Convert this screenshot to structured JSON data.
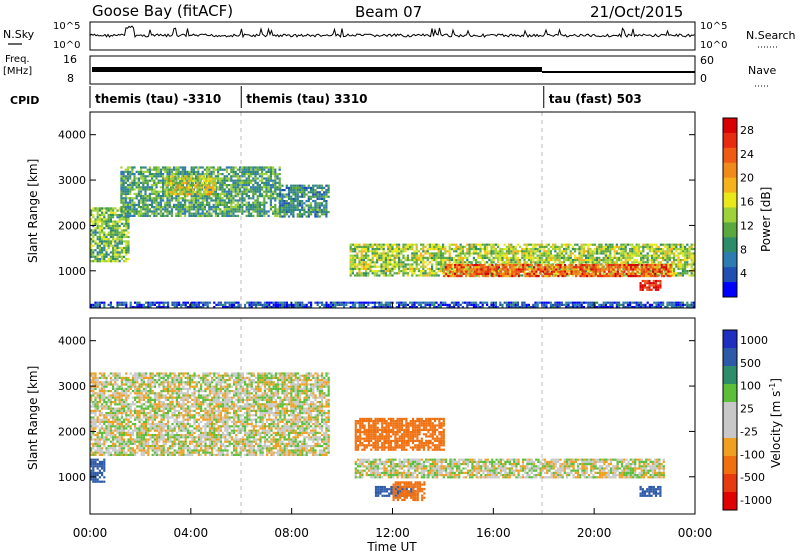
{
  "header": {
    "station": "Goose Bay (fitACF)",
    "beam": "Beam 07",
    "date": "21/Oct/2015"
  },
  "left_labels": {
    "nsky": "N.Sky",
    "nsky_hi": "10^5",
    "nsky_lo": "10^0",
    "freq_line1": "Freq.",
    "freq_line2": "[MHz]",
    "freq_hi": "16",
    "freq_lo": "8",
    "cpid": "CPID"
  },
  "right_labels": {
    "nsearch": "N.Search",
    "nsearch_hi": "10^5",
    "nsearch_lo": "10^0",
    "nave": "Nave",
    "nave_hi": "60",
    "nave_lo": "0"
  },
  "cpid_segments": [
    {
      "label": "themis (tau) -3310",
      "start_h": 0
    },
    {
      "label": "themis (tau) 3310",
      "start_h": 6
    },
    {
      "label": "tau (fast) 503",
      "start_h": 18
    }
  ],
  "x_axis": {
    "title": "Time UT",
    "ticks": [
      "00:00",
      "04:00",
      "08:00",
      "12:00",
      "16:00",
      "20:00",
      "00:00"
    ],
    "range_hours": [
      0,
      24
    ]
  },
  "power_panel": {
    "ylabel": "Slant Range [km]",
    "yticks": [
      "1000",
      "2000",
      "3000",
      "4000"
    ],
    "colorbar_label": "Power [dB]",
    "colorbar_ticks": [
      "4",
      "8",
      "12",
      "16",
      "20",
      "24",
      "28"
    ],
    "colorbar_colors": [
      "#0000ff",
      "#1f4fb0",
      "#2e7ab2",
      "#2f8c6a",
      "#5aa83e",
      "#9fd23a",
      "#e8e81a",
      "#f5b21a",
      "#f08a1a",
      "#ef5a14",
      "#e82a10",
      "#d80000"
    ]
  },
  "velocity_panel": {
    "ylabel": "Slant Range [km]",
    "yticks": [
      "1000",
      "2000",
      "3000",
      "4000"
    ],
    "colorbar_label": "Velocity [m s^-1]",
    "colorbar_ticks": [
      "1000",
      "500",
      "100",
      "25",
      "-25",
      "-100",
      "-500",
      "-1000"
    ],
    "colorbar_colors": [
      "#1f2fbf",
      "#2d5aa8",
      "#2f8c6a",
      "#5bbf3a",
      "#c8c8c8",
      "#c8c8c8",
      "#f0a020",
      "#f07010",
      "#e83a10",
      "#e00000"
    ]
  },
  "chart_data": {
    "type": "heatmap",
    "x": {
      "label": "Time UT",
      "range_hours": [
        0,
        24
      ]
    },
    "y": {
      "label": "Slant Range [km]",
      "range_km": [
        180,
        4500
      ]
    },
    "panels": [
      {
        "name": "Power [dB]",
        "colorbar_range": [
          0,
          30
        ],
        "regions": [
          {
            "t": [
              0.0,
              1.5
            ],
            "r": [
              1200,
              2400
            ],
            "value": 12
          },
          {
            "t": [
              1.2,
              7.5
            ],
            "r": [
              2200,
              3300
            ],
            "value": 10
          },
          {
            "t": [
              3.0,
              5.0
            ],
            "r": [
              2700,
              3100
            ],
            "value": 16
          },
          {
            "t": [
              7.5,
              9.5
            ],
            "r": [
              2200,
              2900
            ],
            "value": 8
          },
          {
            "t": [
              10.3,
              24.0
            ],
            "r": [
              900,
              1600
            ],
            "value": 14
          },
          {
            "t": [
              14.0,
              23.0
            ],
            "r": [
              900,
              1150
            ],
            "value": 24
          },
          {
            "t": [
              21.8,
              22.6
            ],
            "r": [
              600,
              800
            ],
            "value": 28
          },
          {
            "t": [
              0.0,
              24.0
            ],
            "r": [
              200,
              320
            ],
            "value": 4
          }
        ]
      },
      {
        "name": "Velocity [m s^-1]",
        "colorbar_range": [
          -1000,
          1000
        ],
        "regions": [
          {
            "t": [
              0.0,
              9.5
            ],
            "r": [
              1500,
              3300
            ],
            "value": 0
          },
          {
            "t": [
              10.5,
              22.8
            ],
            "r": [
              1000,
              1400
            ],
            "value": 0
          },
          {
            "t": [
              10.5,
              14.0
            ],
            "r": [
              1600,
              2300
            ],
            "value": -300
          },
          {
            "t": [
              0.0,
              0.6
            ],
            "r": [
              900,
              1400
            ],
            "value": 200
          },
          {
            "t": [
              11.3,
              12.8
            ],
            "r": [
              600,
              800
            ],
            "value": 200
          },
          {
            "t": [
              21.8,
              22.6
            ],
            "r": [
              600,
              800
            ],
            "value": 200
          },
          {
            "t": [
              12.0,
              13.3
            ],
            "r": [
              500,
              900
            ],
            "value": -400
          }
        ]
      }
    ]
  }
}
